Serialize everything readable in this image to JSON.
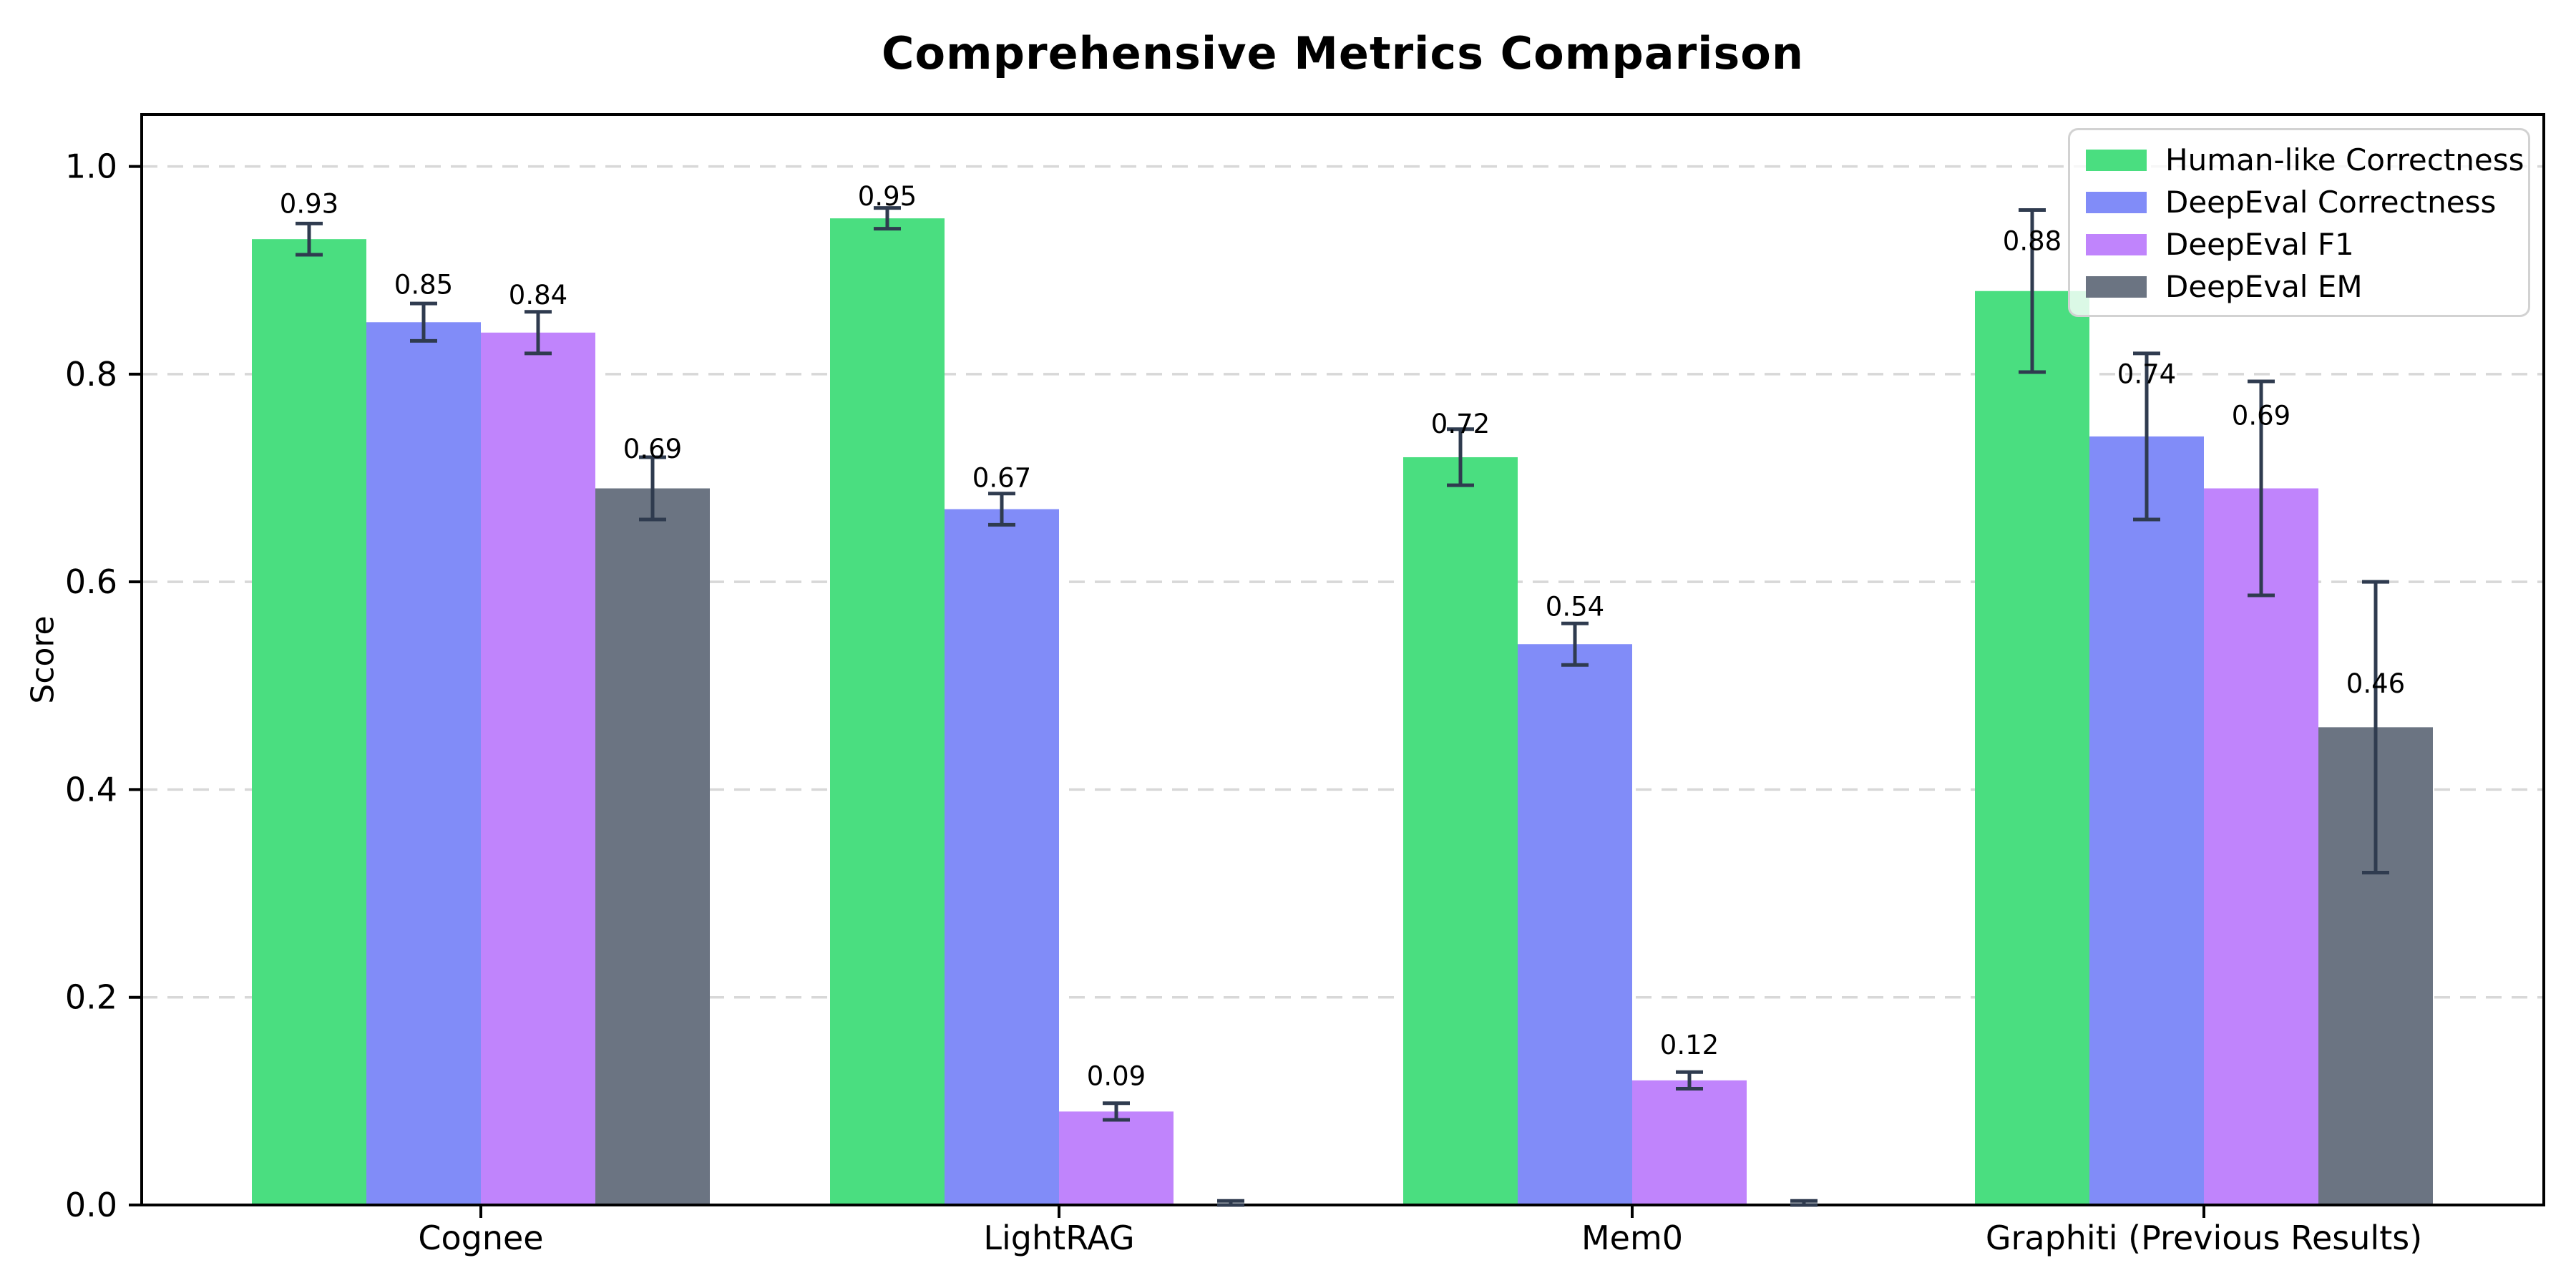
{
  "title": "Comprehensive Metrics Comparison",
  "chart_data": {
    "type": "bar",
    "title": "Comprehensive Metrics Comparison",
    "xlabel": "",
    "ylabel": "Score",
    "ylim": [
      0,
      1.05
    ],
    "yticks": [
      "0.0",
      "0.2",
      "0.4",
      "0.6",
      "0.8",
      "1.0"
    ],
    "grid": "horizontal dashed gridlines at 0.2 intervals",
    "legend_position": "upper right",
    "categories": [
      "Cognee",
      "LightRAG",
      "Mem0",
      "Graphiti (Previous Results)"
    ],
    "series": [
      {
        "name": "Human-like Correctness",
        "color": "#4ade80",
        "values": [
          0.93,
          0.95,
          0.72,
          0.88
        ],
        "errors": [
          0.015,
          0.01,
          0.027,
          0.078
        ],
        "labels": [
          "0.93",
          "0.95",
          "0.72",
          "0.88"
        ],
        "label_offsets": [
          0.034,
          0.021,
          0.032,
          0.048
        ]
      },
      {
        "name": "DeepEval Correctness",
        "color": "#818cf8",
        "values": [
          0.85,
          0.67,
          0.54,
          0.74
        ],
        "errors": [
          0.018,
          0.015,
          0.02,
          0.08
        ],
        "labels": [
          "0.85",
          "0.67",
          "0.54",
          "0.74"
        ],
        "label_offsets": [
          0.036,
          0.03,
          0.036,
          0.06
        ]
      },
      {
        "name": "DeepEval F1",
        "color": "#c084fc",
        "values": [
          0.84,
          0.09,
          0.12,
          0.69
        ],
        "errors": [
          0.02,
          0.008,
          0.008,
          0.103
        ],
        "labels": [
          "0.84",
          "0.09",
          "0.12",
          "0.69"
        ],
        "label_offsets": [
          0.036,
          0.034,
          0.034,
          0.07
        ]
      },
      {
        "name": "DeepEval EM",
        "color": "#6b7482",
        "values": [
          0.69,
          0.0,
          0.0,
          0.46
        ],
        "errors": [
          0.03,
          0.004,
          0.004,
          0.14
        ],
        "labels": [
          "0.69",
          null,
          null,
          "0.46"
        ],
        "label_offsets": [
          0.038,
          0,
          0,
          0.042
        ]
      }
    ],
    "error_bar_color": "#2f3b4f",
    "gridline_color": "#d8d8d8",
    "axis_color": "#000000"
  }
}
